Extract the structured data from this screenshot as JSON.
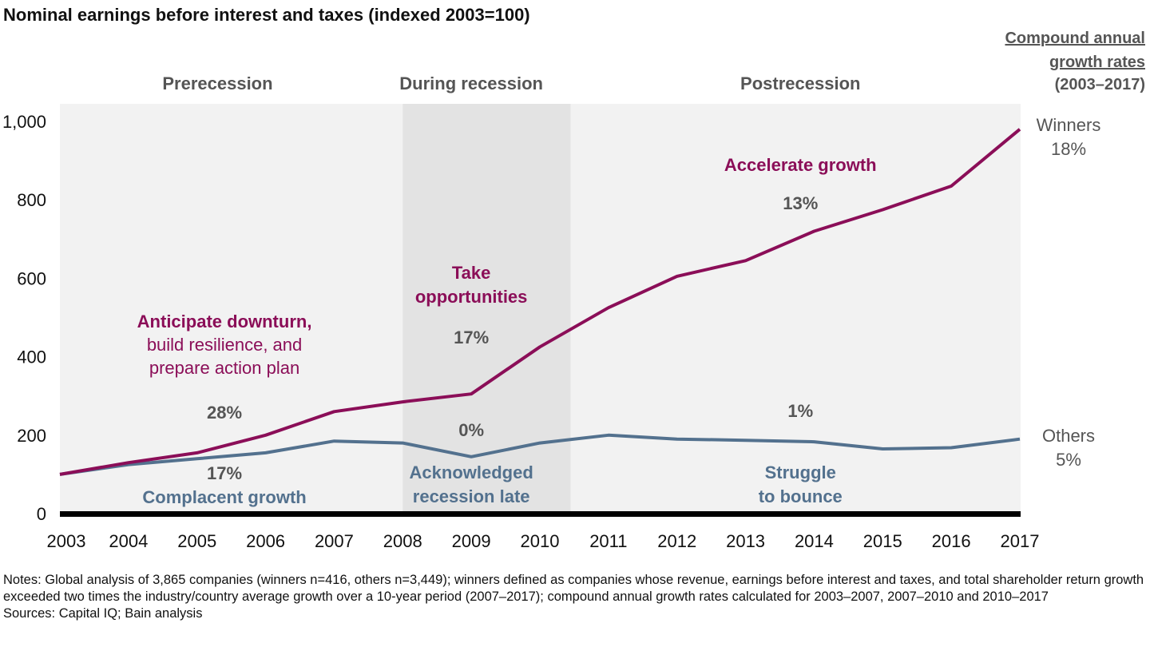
{
  "chart_data": {
    "type": "line",
    "title": "Nominal earnings before interest and taxes (indexed 2003=100)",
    "x": [
      2003,
      2004,
      2005,
      2006,
      2007,
      2008,
      2009,
      2010,
      2011,
      2012,
      2013,
      2014,
      2015,
      2016,
      2017
    ],
    "ylim": [
      0,
      1000
    ],
    "yticks": [
      0,
      200,
      400,
      600,
      800,
      1000
    ],
    "ytick_labels": [
      "0",
      "200",
      "400",
      "600",
      "800",
      "1,000"
    ],
    "grid": false,
    "series": [
      {
        "name": "Winners",
        "cagr": "18%",
        "color": "#8b0e58",
        "values": [
          100,
          130,
          155,
          200,
          260,
          285,
          305,
          425,
          525,
          605,
          645,
          720,
          775,
          835,
          980
        ]
      },
      {
        "name": "Others",
        "cagr": "5%",
        "color": "#53718e",
        "values": [
          100,
          125,
          140,
          155,
          185,
          180,
          145,
          180,
          200,
          190,
          187,
          183,
          165,
          168,
          190
        ]
      }
    ],
    "cagr_header": [
      "Compound annual",
      "growth rates",
      "(2003–2017)"
    ],
    "periods": [
      {
        "label": "Prerecession",
        "shade": "#f2f2f2",
        "winners_label": [
          "Anticipate downturn,",
          "build resilience, and",
          "prepare action plan"
        ],
        "winners_cagr": "28%",
        "others_cagr": "17%",
        "others_label": [
          "Complacent growth"
        ]
      },
      {
        "label": "During recession",
        "shade": "#e3e3e3",
        "winners_label": [
          "Take",
          "opportunities"
        ],
        "winners_cagr": "17%",
        "others_cagr": "0%",
        "others_label": [
          "Acknowledged",
          "recession late"
        ]
      },
      {
        "label": "Postrecession",
        "shade": "#f2f2f2",
        "winners_label": [
          "Accelerate growth"
        ],
        "winners_cagr": "13%",
        "others_cagr": "1%",
        "others_label": [
          "Struggle",
          "to bounce"
        ]
      }
    ]
  },
  "notes": "Notes: Global analysis of 3,865 companies (winners n=416, others n=3,449); winners defined as companies whose revenue, earnings before interest and taxes, and total shareholder return growth exceeded two times the industry/country average growth over a 10-year period (2007–2017); compound annual growth rates calculated for 2003–2007, 2007–2010 and 2010–2017",
  "sources": "Sources: Capital IQ; Bain analysis"
}
